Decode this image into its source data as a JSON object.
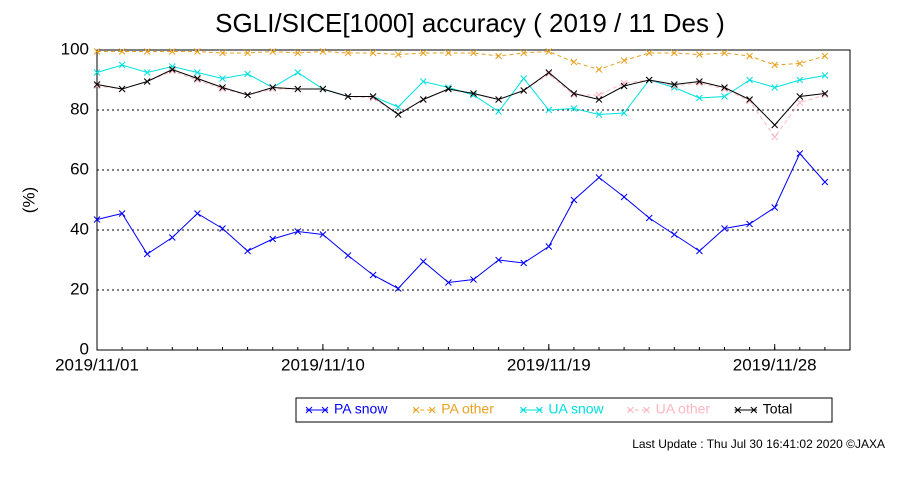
{
  "chart_data": {
    "type": "line",
    "title": "SGLI/SICE[1000] accuracy ( 2019 / 11 Des )",
    "y_label": "(%)",
    "footer": "Last Update : Thu Jul 30 16:41:02 2020 ©JAXA",
    "x": [
      "2019/11/01",
      "2019/11/02",
      "2019/11/03",
      "2019/11/04",
      "2019/11/05",
      "2019/11/06",
      "2019/11/07",
      "2019/11/08",
      "2019/11/09",
      "2019/11/10",
      "2019/11/11",
      "2019/11/12",
      "2019/11/13",
      "2019/11/14",
      "2019/11/15",
      "2019/11/16",
      "2019/11/17",
      "2019/11/18",
      "2019/11/19",
      "2019/11/20",
      "2019/11/21",
      "2019/11/22",
      "2019/11/23",
      "2019/11/24",
      "2019/11/25",
      "2019/11/26",
      "2019/11/27",
      "2019/11/28",
      "2019/11/29",
      "2019/11/30"
    ],
    "xlim": [
      "2019/11/01",
      "2019/12/01"
    ],
    "xticks": [
      "2019/11/01",
      "2019/11/10",
      "2019/11/19",
      "2019/11/28"
    ],
    "ylim": [
      0,
      100
    ],
    "yticks": [
      0,
      20,
      40,
      60,
      80,
      100
    ],
    "grid": true,
    "legend": "bottom",
    "series": [
      {
        "name": "PA snow",
        "color": "#0000ff",
        "dashed": false,
        "values": [
          43.5,
          45.5,
          32,
          37.5,
          45.5,
          40.5,
          33,
          37,
          39.5,
          38.5,
          31.5,
          25,
          20.5,
          29.5,
          22.5,
          23.5,
          30,
          29,
          34.5,
          50,
          57.5,
          51,
          44,
          38.5,
          33,
          40.5,
          42,
          47.5,
          65.5,
          56
        ]
      },
      {
        "name": "PA other",
        "color": "#e8a020",
        "dashed": true,
        "values": [
          99.5,
          99.5,
          99.5,
          99.5,
          99.5,
          99,
          99,
          99.5,
          99,
          99.5,
          99,
          99,
          98.5,
          99,
          99,
          99,
          98,
          99,
          99.5,
          96,
          93.5,
          96.5,
          99,
          99,
          98.5,
          99,
          98,
          95,
          95.5,
          98
        ]
      },
      {
        "name": "UA snow",
        "color": "#00e0e0",
        "dashed": false,
        "values": [
          92.5,
          95,
          92.5,
          94.5,
          92.5,
          90.5,
          92,
          87.5,
          92.5,
          87,
          84.5,
          84.5,
          81,
          89.5,
          87.5,
          85,
          79.5,
          90.5,
          80,
          80.5,
          78.5,
          79,
          90,
          87.5,
          84,
          84.5,
          90,
          87.5,
          90,
          91.5
        ]
      },
      {
        "name": "UA other",
        "color": "#ffb6c1",
        "dashed": true,
        "values": [
          88,
          87,
          89.5,
          93,
          90,
          87,
          85,
          87,
          87,
          87,
          84.5,
          84,
          78.5,
          83.5,
          87,
          85.5,
          83.5,
          86.5,
          92,
          85,
          85,
          89,
          90,
          88,
          89,
          87,
          83,
          71,
          82.5,
          85
        ]
      },
      {
        "name": "Total",
        "color": "#000000",
        "dashed": false,
        "values": [
          88.5,
          87,
          89.5,
          93.5,
          90.5,
          87.5,
          85,
          87.5,
          87,
          87,
          84.5,
          84.5,
          78.5,
          83.5,
          87,
          85.5,
          83.5,
          86.5,
          92.5,
          85.5,
          83.5,
          88,
          90,
          88.5,
          89.5,
          87.5,
          83.5,
          75,
          84.5,
          85.5
        ]
      }
    ]
  }
}
